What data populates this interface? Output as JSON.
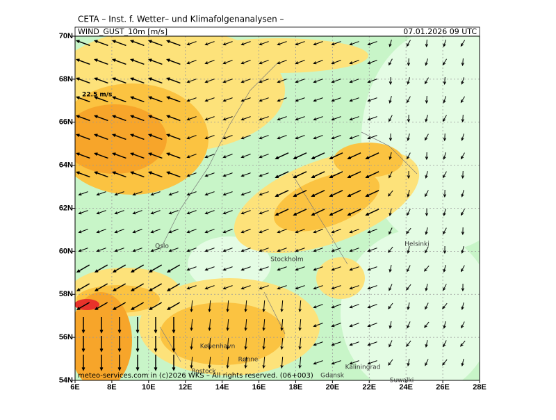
{
  "header": {
    "title": "CETA – Inst. f. Wetter– und Klimafolgenanalysen –",
    "field": "WIND_GUST_10m [m/s]",
    "valid": "07.01.2026 09 UTC"
  },
  "map": {
    "lon_ticks": [
      {
        "value": 6,
        "label": "6E"
      },
      {
        "value": 8,
        "label": "8E"
      },
      {
        "value": 10,
        "label": "10E"
      },
      {
        "value": 12,
        "label": "12E"
      },
      {
        "value": 14,
        "label": "14E"
      },
      {
        "value": 16,
        "label": "16E"
      },
      {
        "value": 18,
        "label": "18E"
      },
      {
        "value": 20,
        "label": "20E"
      },
      {
        "value": 22,
        "label": "22E"
      },
      {
        "value": 24,
        "label": "24E"
      },
      {
        "value": 26,
        "label": "26E"
      },
      {
        "value": 28,
        "label": "28E"
      }
    ],
    "lat_ticks": [
      {
        "value": 54,
        "label": "54N"
      },
      {
        "value": 56,
        "label": "56N"
      },
      {
        "value": 58,
        "label": "58N"
      },
      {
        "value": 60,
        "label": "60N"
      },
      {
        "value": 62,
        "label": "62N"
      },
      {
        "value": 64,
        "label": "64N"
      },
      {
        "value": 66,
        "label": "66N"
      },
      {
        "value": 68,
        "label": "68N"
      },
      {
        "value": 70,
        "label": "70N"
      }
    ],
    "cities": [
      "Oslo",
      "Stockholm",
      "Helsinki",
      "København",
      "Rostock",
      "Rønne",
      "Kaliningrad",
      "Gdansk",
      "Suwalki"
    ],
    "max_label": "22.5 m/s"
  },
  "footer": "meteo-services.com in (c)2026 WKS – All rights reserved. (06+003)"
}
